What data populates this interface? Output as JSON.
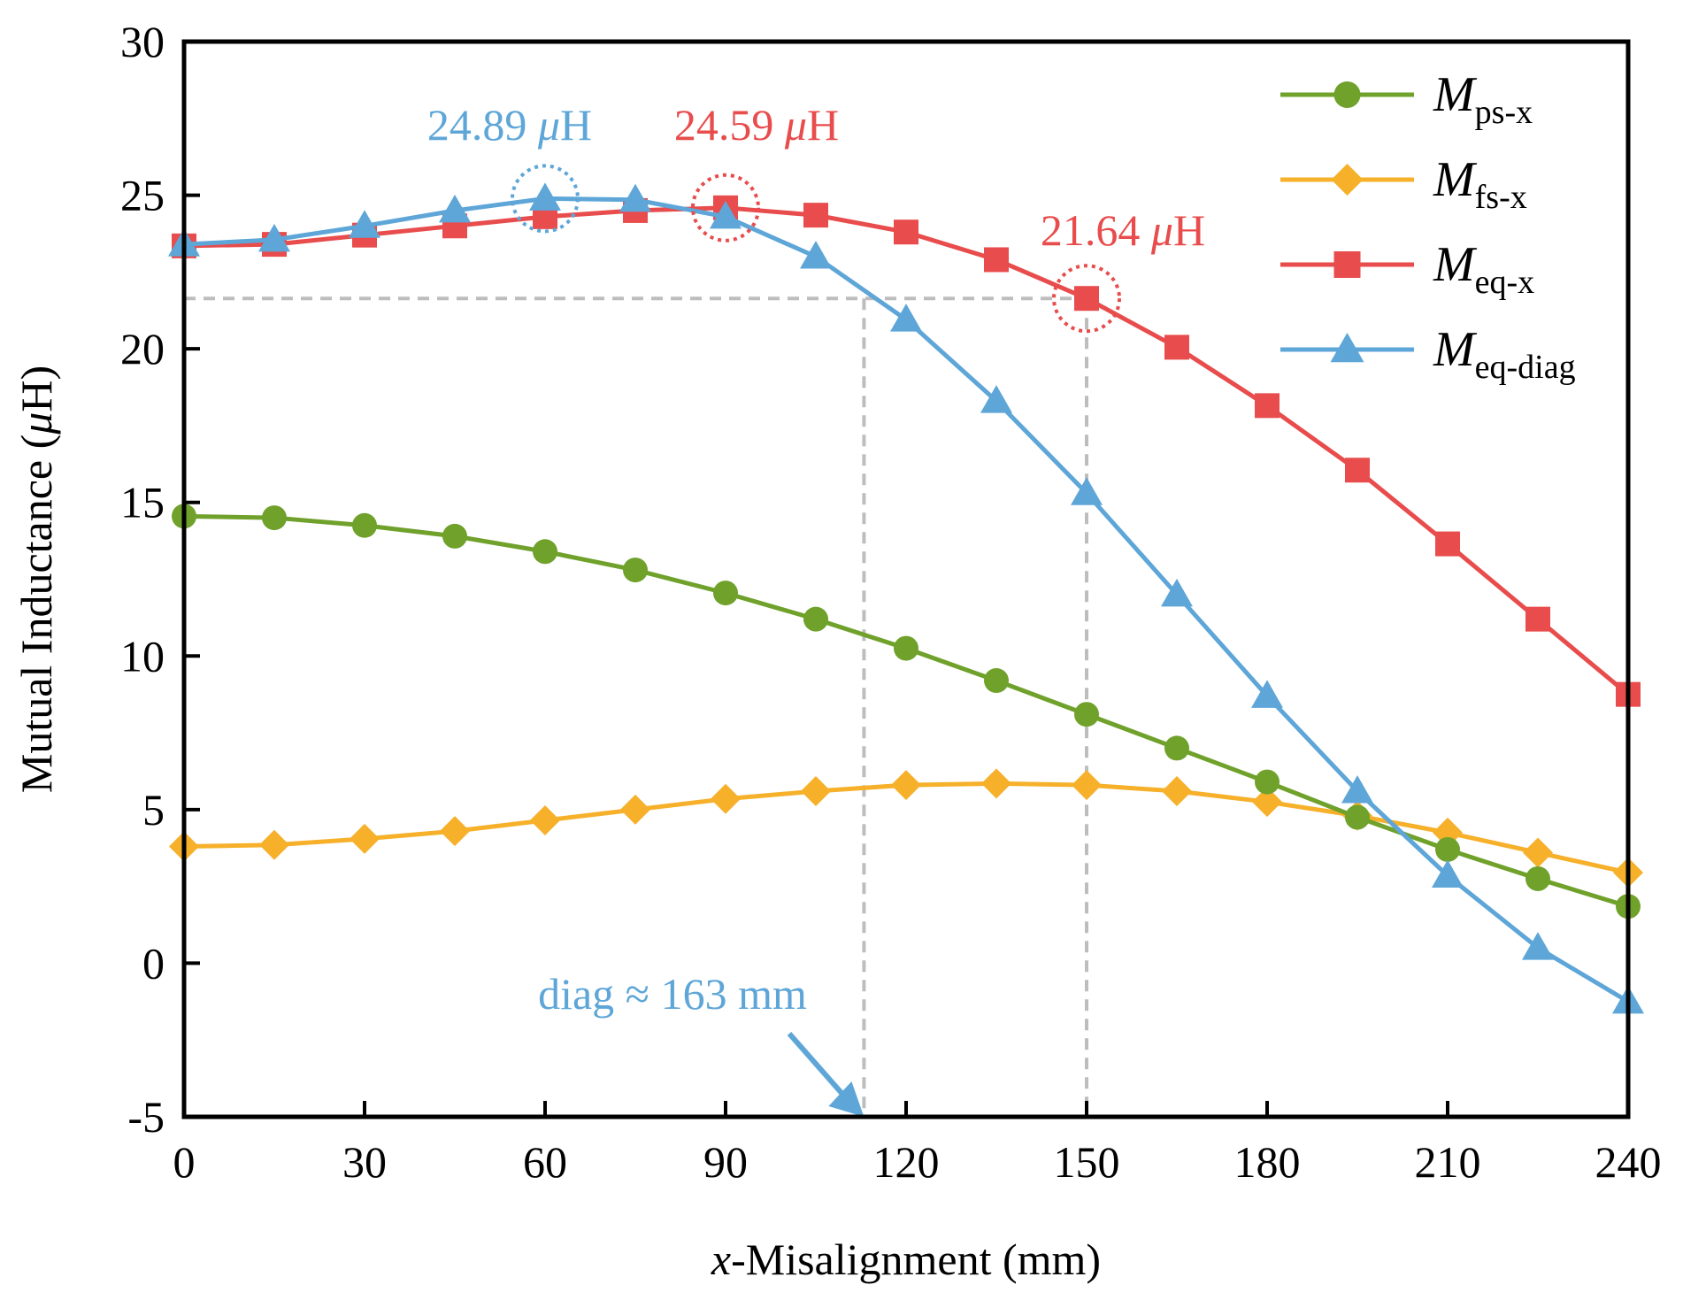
{
  "chart_data": {
    "type": "line",
    "xlabel_italic": "x",
    "xlabel_rest": "-Misalignment (mm)",
    "ylabel_main": "Mutual Inductance (",
    "ylabel_mu": "μ",
    "ylabel_end": "H)",
    "xlim": [
      0,
      240
    ],
    "ylim": [
      -5,
      30
    ],
    "x_ticks": [
      0,
      30,
      60,
      90,
      120,
      150,
      180,
      210,
      240
    ],
    "y_ticks": [
      -5,
      0,
      5,
      10,
      15,
      20,
      25,
      30
    ],
    "x_tick_labels": [
      "0",
      "30",
      "60",
      "90",
      "120",
      "150",
      "180",
      "210",
      "240"
    ],
    "y_tick_labels": [
      "-5",
      "0",
      "5",
      "10",
      "15",
      "20",
      "25",
      "30"
    ],
    "x": [
      0,
      15,
      30,
      45,
      60,
      75,
      90,
      105,
      120,
      135,
      150,
      165,
      180,
      195,
      210,
      225,
      240
    ],
    "series": [
      {
        "name": "M_ps-x",
        "label_main": "M",
        "label_sub": "ps-x",
        "color": "#6fa12b",
        "marker": "circle",
        "values": [
          14.55,
          14.5,
          14.25,
          13.9,
          13.4,
          12.8,
          12.05,
          11.2,
          10.25,
          9.2,
          8.1,
          7.0,
          5.9,
          4.75,
          3.7,
          2.75,
          1.85
        ]
      },
      {
        "name": "M_fs-x",
        "label_main": "M",
        "label_sub": "fs-x",
        "color": "#f6b02a",
        "marker": "diamond",
        "values": [
          3.8,
          3.85,
          4.05,
          4.3,
          4.65,
          5.0,
          5.35,
          5.6,
          5.8,
          5.85,
          5.8,
          5.6,
          5.25,
          4.8,
          4.25,
          3.6,
          2.95
        ]
      },
      {
        "name": "M_eq-x",
        "label_main": "M",
        "label_sub": "eq-x",
        "color": "#e84c4c",
        "marker": "square",
        "values": [
          23.35,
          23.4,
          23.7,
          24.0,
          24.3,
          24.5,
          24.59,
          24.35,
          23.8,
          22.9,
          21.64,
          20.05,
          18.15,
          16.05,
          13.65,
          11.2,
          8.75
        ]
      },
      {
        "name": "M_eq-diag",
        "label_main": "M",
        "label_sub": "eq-diag",
        "color": "#5ea6d8",
        "marker": "triangle",
        "values": [
          23.4,
          23.55,
          24.0,
          24.5,
          24.89,
          24.85,
          24.3,
          23.0,
          20.95,
          18.3,
          15.3,
          12.0,
          8.7,
          5.6,
          2.85,
          0.5,
          -1.25
        ]
      }
    ],
    "annotations": [
      {
        "id": "peak-diag",
        "text": "24.89 ",
        "unit": "μH",
        "color": "#5ea6d8",
        "point": [
          60,
          24.89
        ]
      },
      {
        "id": "peak-eq",
        "text": "24.59 ",
        "unit": "μH",
        "color": "#e84c4c",
        "point": [
          90,
          24.59
        ]
      },
      {
        "id": "eq-150",
        "text": "21.64 ",
        "unit": "μH",
        "color": "#e84c4c",
        "point": [
          150,
          21.64
        ]
      },
      {
        "id": "diag-163",
        "text": "diag ≈ 163 mm",
        "color": "#5ea6d8",
        "arrow_to": [
          113,
          -5
        ]
      }
    ],
    "reference_lines": {
      "horizontal_y": 21.64,
      "horizontal_x_range": [
        0,
        150
      ],
      "vertical_x": [
        113,
        150
      ]
    },
    "legend_position": "top-right",
    "grid": false
  }
}
